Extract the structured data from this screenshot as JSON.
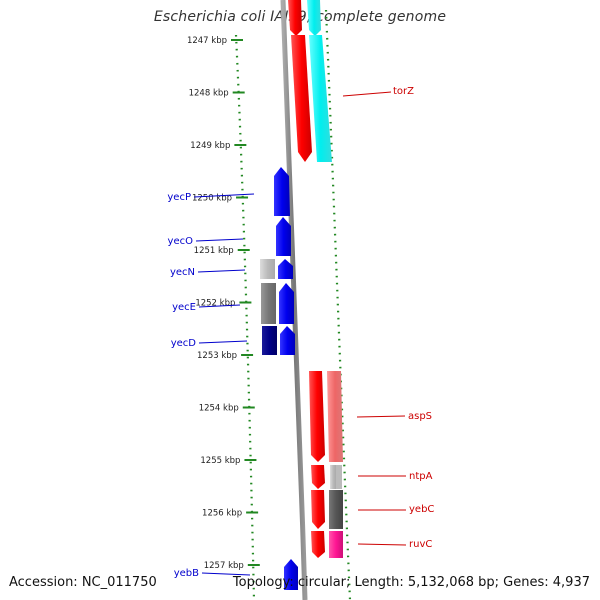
{
  "title": "Escherichia coli IAI39, complete genome",
  "accession_text": "Accession: NC_011750",
  "summary_text": "Topology: circular; Length: 5,132,068 bp; Genes: 4,937",
  "ruler": {
    "unit": "kbp",
    "ticks": [
      {
        "label": "1247 kbp",
        "value": 1247
      },
      {
        "label": "1248 kbp",
        "value": 1248
      },
      {
        "label": "1249 kbp",
        "value": 1249
      },
      {
        "label": "1250 kbp",
        "value": 1250
      },
      {
        "label": "1251 kbp",
        "value": 1251
      },
      {
        "label": "1252 kbp",
        "value": 1252
      },
      {
        "label": "1253 kbp",
        "value": 1253
      },
      {
        "label": "1254 kbp",
        "value": 1254
      },
      {
        "label": "1255 kbp",
        "value": 1255
      },
      {
        "label": "1256 kbp",
        "value": 1256
      },
      {
        "label": "1257 kbp",
        "value": 1257
      }
    ]
  },
  "colors": {
    "forward_strand": "#ff0000",
    "reverse_strand": "#0000ff",
    "cyan_feature": "#00ffff",
    "backbone": "#888888",
    "tick_green": "#228822",
    "label_forward": "#cc0000",
    "label_reverse": "#0000cc"
  },
  "gene_labels": [
    {
      "name": "torZ",
      "strand": "forward"
    },
    {
      "name": "yecP",
      "strand": "reverse"
    },
    {
      "name": "yecO",
      "strand": "reverse"
    },
    {
      "name": "yecN",
      "strand": "reverse"
    },
    {
      "name": "yecE",
      "strand": "reverse"
    },
    {
      "name": "yecD",
      "strand": "reverse"
    },
    {
      "name": "aspS",
      "strand": "forward"
    },
    {
      "name": "ntpA",
      "strand": "forward"
    },
    {
      "name": "yebC",
      "strand": "forward"
    },
    {
      "name": "ruvC",
      "strand": "forward"
    },
    {
      "name": "yebB",
      "strand": "reverse"
    }
  ]
}
